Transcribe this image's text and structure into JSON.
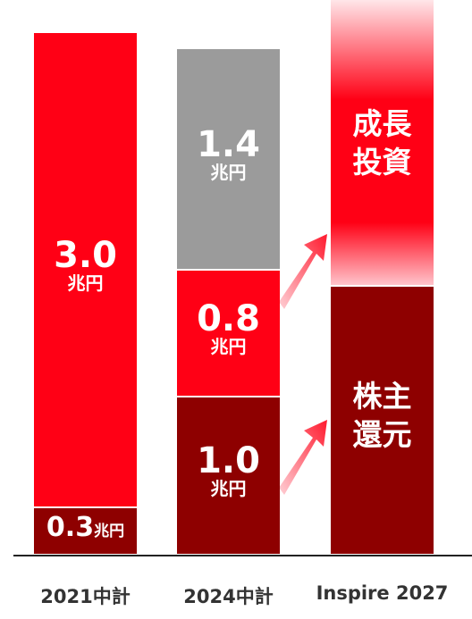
{
  "chart_data": {
    "type": "stacked_bar",
    "categories": [
      "2021中計",
      "2024中計",
      "Inspire 2027"
    ],
    "unit": "兆円",
    "series": [
      {
        "name": "株主還元",
        "color": "#8e0000",
        "values": [
          0.3,
          1.0,
          1.7
        ],
        "value_labels": [
          "0.3",
          "1.0",
          null
        ]
      },
      {
        "name": "成長投資",
        "color": "#ff0015",
        "values": [
          3.0,
          0.8,
          1.8
        ],
        "value_labels": [
          "3.0",
          "0.8",
          null
        ]
      },
      {
        "color": "#9b9b9b",
        "values": [
          0,
          1.4,
          0
        ],
        "value_labels": [
          null,
          "1.4",
          null
        ]
      }
    ],
    "ylim": [
      0,
      3.5
    ]
  }
}
